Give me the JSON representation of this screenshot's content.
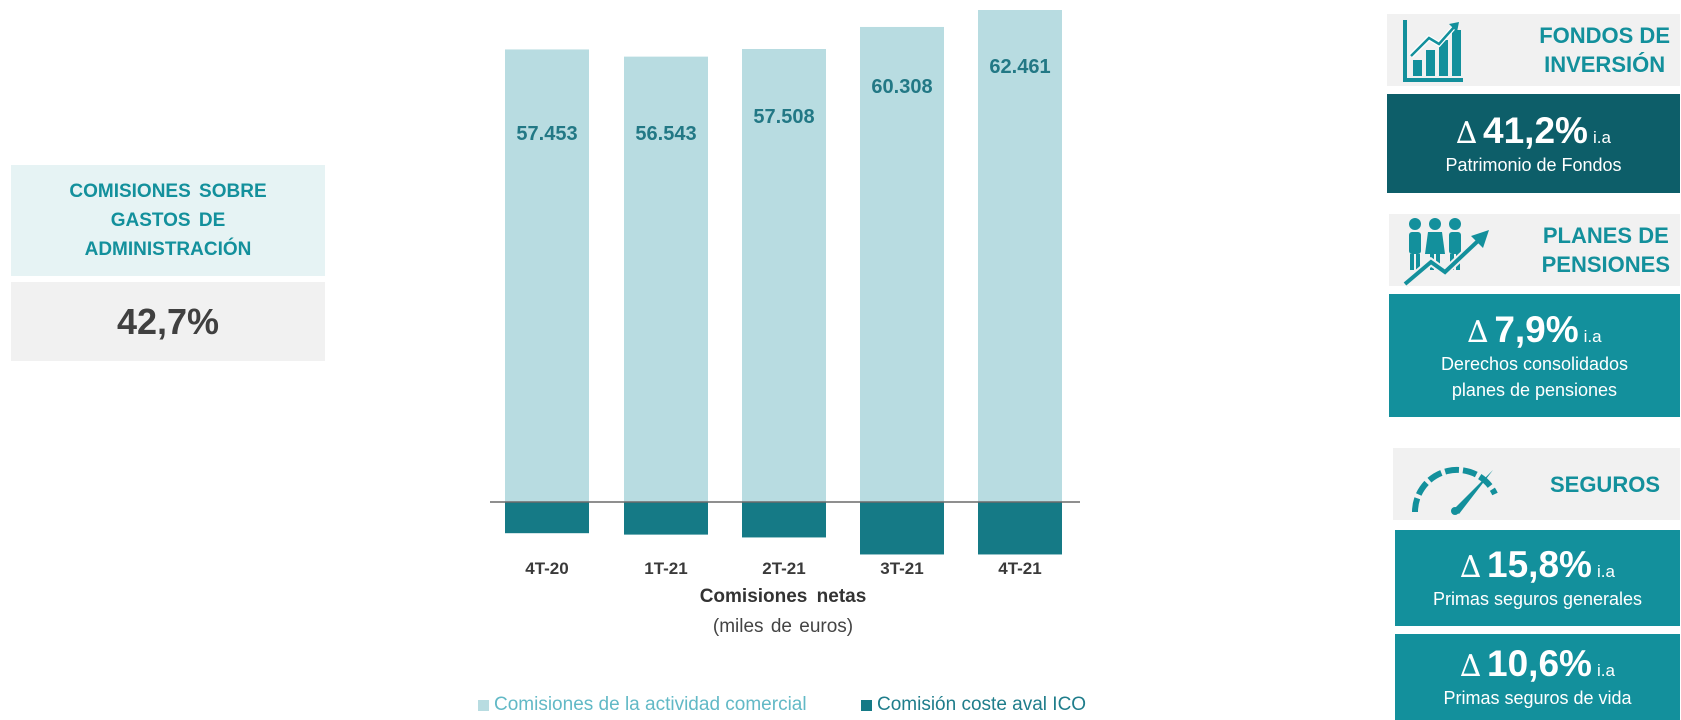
{
  "left_kpi": {
    "title": "COMISIONES  SOBRE\nGASTOS DE\nADMINISTRACIÓN",
    "value": "42,7%"
  },
  "chart_data": {
    "type": "bar",
    "title": "Comisiones  netas",
    "subtitle": "(miles de euros)",
    "categories": [
      "4T-20",
      "1T-21",
      "2T-21",
      "3T-21",
      "4T-21"
    ],
    "series": [
      {
        "name": "Comisiones de la actividad comercial",
        "values": [
          57453,
          56543,
          57508,
          60308,
          62461
        ],
        "labels": [
          "57.453",
          "56.543",
          "57.508",
          "60.308",
          "62.461"
        ],
        "color": "#b8dce1"
      },
      {
        "name": "Comisión coste aval ICO",
        "values": [
          -2200,
          -2300,
          -2500,
          -3700,
          -3700
        ],
        "color": "#157a86"
      }
    ],
    "legend_position": "bottom",
    "grid": false
  },
  "right_panel": {
    "fondos": {
      "title": "FONDOS DE\nINVERSIÓN",
      "icon": "bar-chart-growth-icon",
      "delta_symbol": "∆",
      "delta": "41,2%",
      "suffix": "i.a",
      "desc": "Patrimonio de Fondos"
    },
    "planes": {
      "title": "PLANES DE\nPENSIONES",
      "icon": "people-growth-icon",
      "delta_symbol": "∆",
      "delta": "7,9%",
      "suffix": "i.a",
      "desc": "Derechos consolidados\nplanes de pensiones"
    },
    "seguros": {
      "title": "SEGUROS",
      "icon": "gauge-icon",
      "cards": [
        {
          "delta_symbol": "∆",
          "delta": "15,8%",
          "suffix": "i.a",
          "desc": "Primas seguros generales"
        },
        {
          "delta_symbol": "∆",
          "delta": "10,6%",
          "suffix": "i.a",
          "desc": "Primas seguros de vida"
        }
      ]
    }
  },
  "colors": {
    "accent": "#13909c",
    "dark": "#0d5e69",
    "bar_light": "#b8dce1",
    "bar_dark": "#157a86"
  }
}
